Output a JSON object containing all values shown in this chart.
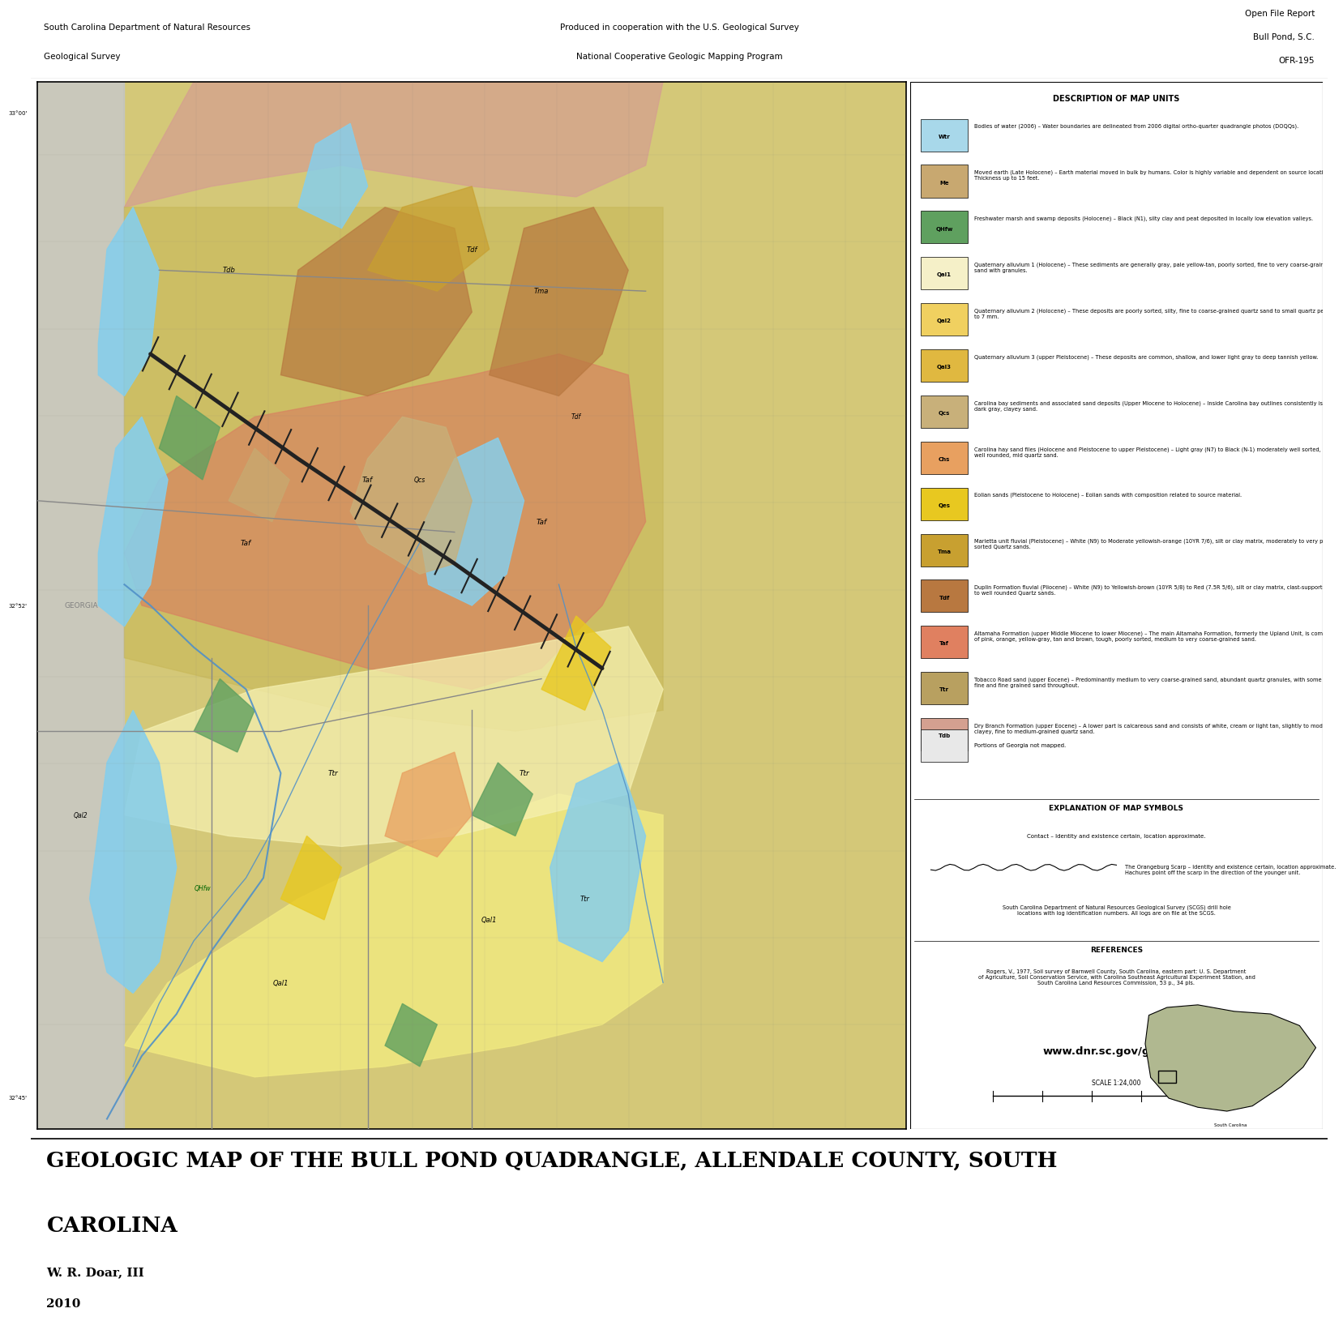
{
  "title_main": "GEOLOGIC MAP OF THE BULL POND QUADRANGLE, ALLENDALE COUNTY, SOUTH",
  "title_main2": "CAROLINA",
  "author": "W. R. Doar, III",
  "year": "2010",
  "header_left1": "South Carolina Department of Natural Resources",
  "header_left2": "Geological Survey",
  "header_center1": "Produced in cooperation with the U.S. Geological Survey",
  "header_center2": "National Cooperative Geologic Mapping Program",
  "header_right1": "Open File Report",
  "header_right2": "Bull Pond, S.C.",
  "header_right3": "OFR-195",
  "website": "www.dnr.sc.gov/geology",
  "description_title": "DESCRIPTION OF MAP UNITS",
  "explanation_title": "EXPLANATION OF MAP SYMBOLS",
  "references_title": "REFERENCES",
  "legend_items": [
    {
      "code": "Wtr",
      "color": "#a8d8ea",
      "label": "Bodies of water (2006)"
    },
    {
      "code": "Me",
      "color": "#c8a870",
      "label": "Moved earth (Late Holocene)"
    },
    {
      "code": "QHfw",
      "color": "#5fa05f",
      "label": "Freshwater marsh and swamp deposits (Holocene)"
    },
    {
      "code": "Qal1",
      "color": "#f5f0c8",
      "label": "Quaternary alluvium 1 (Holocene)"
    },
    {
      "code": "Qal2",
      "color": "#f0d060",
      "label": "Quaternary alluvium 2 (Holocene)"
    },
    {
      "code": "Qal3",
      "color": "#e0b840",
      "label": "Quaternary alluvium 3 (upper Pleistocene)"
    },
    {
      "code": "Qcs",
      "color": "#c8b07a",
      "label": "Carolina bay sediments (Upper Miocene to Holocene)"
    },
    {
      "code": "Chs",
      "color": "#e8a060",
      "label": "Carolina hay sand files (Holocene and Pleistocene to upper Pleistocene)"
    },
    {
      "code": "Qes",
      "color": "#e8c820",
      "label": "Eolian sands (Pleistocene to Holocene)"
    },
    {
      "code": "Tma",
      "color": "#c8a030",
      "label": "Marietta unit fluvial (Pleistocene)"
    },
    {
      "code": "Tdf",
      "color": "#b87840",
      "label": "Duplin Formation fluvial (Pliocene)"
    },
    {
      "code": "Taf",
      "color": "#e08060",
      "label": "Altamaha Formation (upper Middle Miocene to lower Miocene)"
    },
    {
      "code": "Ttr",
      "color": "#b8a060",
      "label": "Tobacco Road sand (upper Eocene)"
    },
    {
      "code": "Tdb",
      "color": "#d4a090",
      "label": "Dry Branch Formation (upper Eocene)"
    }
  ],
  "bg_color": "#ffffff",
  "map_bg": "#d4c878",
  "scale": "1:24,000"
}
